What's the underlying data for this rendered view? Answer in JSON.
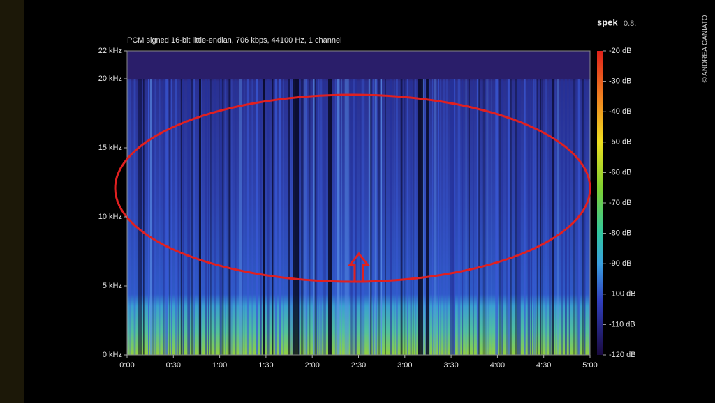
{
  "header": "PCM signed 16-bit little-endian, 706 kbps, 44100 Hz, 1 channel",
  "app": {
    "name": "spek",
    "version": "0.8."
  },
  "credit": "© ANDREA CANIATO",
  "frequency_labels": [
    "22 kHz",
    "20 kHz",
    "15 kHz",
    "10 kHz",
    "5 kHz",
    "0 kHz"
  ],
  "time_labels": [
    "0:00",
    "0:30",
    "1:00",
    "1:30",
    "2:00",
    "2:30",
    "3:00",
    "3:30",
    "4:00",
    "4:30",
    "5:00"
  ],
  "level_labels": [
    "-20 dB",
    "-30 dB",
    "-40 dB",
    "-50 dB",
    "-60 dB",
    "-70 dB",
    "-80 dB",
    "-90 dB",
    "-100 dB",
    "-110 dB",
    "-120 dB"
  ]
}
